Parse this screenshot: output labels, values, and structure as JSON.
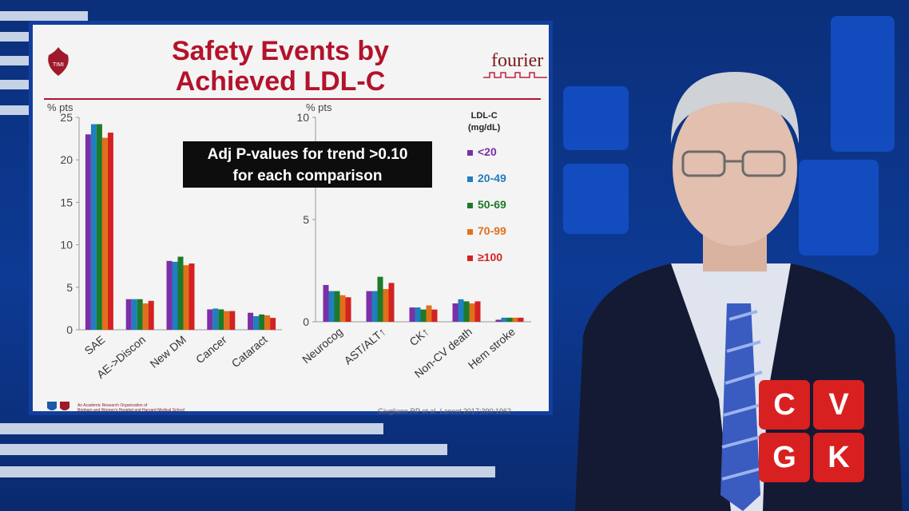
{
  "slide": {
    "title_line1": "Safety Events by",
    "title_line2": "Achieved LDL-C",
    "brand_logo_text": "fourier",
    "timi_logo_text": "TIMI",
    "annotation_line1": "Adj P-values for trend >0.10",
    "annotation_line2": "for each comparison",
    "footer_org_line1": "An Academic Research Organization of",
    "footer_org_line2": "Brigham and Women's Hospital and Harvard Medical School",
    "citation_prefix": "Giugliano RP et al. ",
    "citation_journal": "Lancet",
    "citation_suffix": " 2017;390:1962-"
  },
  "legend": {
    "title_line1": "LDL-C",
    "title_line2": "(mg/dL)",
    "items": [
      {
        "label": "<20",
        "color": "#7b2fa8"
      },
      {
        "label": "20-49",
        "color": "#1f7fbf"
      },
      {
        "label": "50-69",
        "color": "#1d7a2b"
      },
      {
        "label": "70-99",
        "color": "#e0701a"
      },
      {
        "label": "≥100",
        "color": "#d42222"
      }
    ]
  },
  "chart_data": [
    {
      "type": "bar",
      "ylabel": "% pts",
      "ylim": [
        0,
        25
      ],
      "yticks": [
        "0",
        "5",
        "10",
        "15",
        "20",
        "25"
      ],
      "categories": [
        "SAE",
        "AE->Discon",
        "New DM",
        "Cancer",
        "Cataract"
      ],
      "series": [
        {
          "name": "<20",
          "values": [
            23.0,
            3.6,
            8.1,
            2.4,
            2.0
          ]
        },
        {
          "name": "20-49",
          "values": [
            24.2,
            3.6,
            8.0,
            2.5,
            1.6
          ]
        },
        {
          "name": "50-69",
          "values": [
            24.2,
            3.6,
            8.6,
            2.4,
            1.8
          ]
        },
        {
          "name": "70-99",
          "values": [
            22.6,
            3.1,
            7.6,
            2.2,
            1.7
          ]
        },
        {
          "name": "≥100",
          "values": [
            23.2,
            3.4,
            7.8,
            2.2,
            1.4
          ]
        }
      ],
      "grid": false
    },
    {
      "type": "bar",
      "ylabel": "% pts",
      "ylim": [
        0,
        10
      ],
      "yticks": [
        "0",
        "5",
        "10"
      ],
      "categories": [
        "Neurocog",
        "AST/ALT↑",
        "CK↑",
        "Non-CV death",
        "Hem stroke"
      ],
      "series": [
        {
          "name": "<20",
          "values": [
            1.8,
            1.5,
            0.7,
            0.9,
            0.1
          ]
        },
        {
          "name": "20-49",
          "values": [
            1.5,
            1.5,
            0.7,
            1.1,
            0.2
          ]
        },
        {
          "name": "50-69",
          "values": [
            1.5,
            2.2,
            0.6,
            1.0,
            0.2
          ]
        },
        {
          "name": "70-99",
          "values": [
            1.3,
            1.6,
            0.8,
            0.9,
            0.2
          ]
        },
        {
          "name": "≥100",
          "values": [
            1.2,
            1.9,
            0.6,
            1.0,
            0.2
          ]
        }
      ],
      "grid": false
    }
  ],
  "overlay": {
    "logo_letters": [
      "C",
      "V",
      "G",
      "K"
    ]
  }
}
